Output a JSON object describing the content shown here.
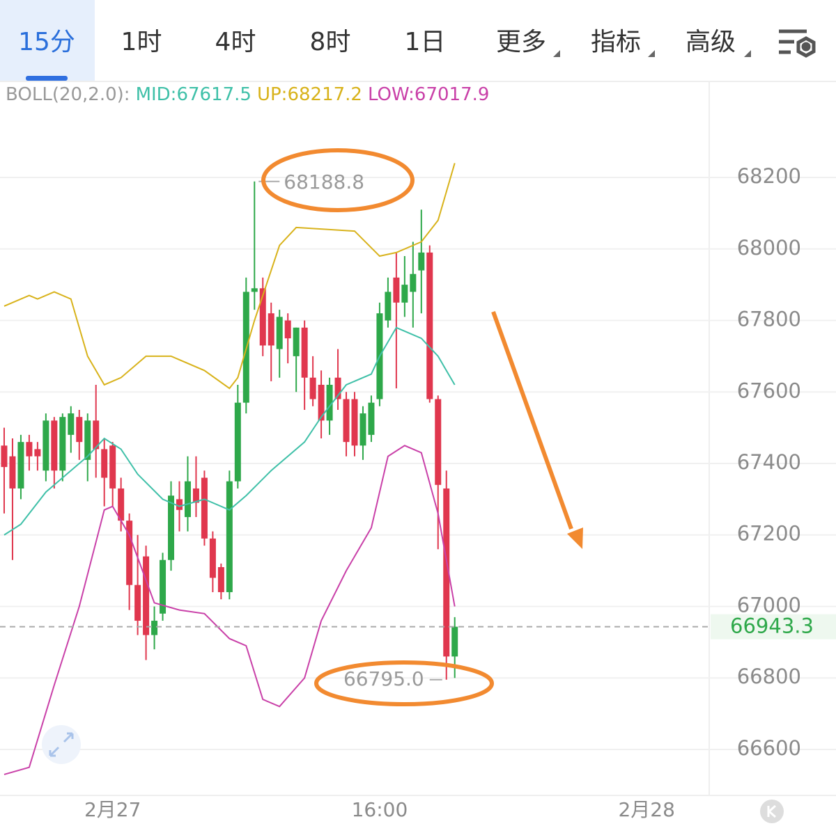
{
  "tabs": [
    "15分",
    "1时",
    "4时",
    "8时",
    "1日",
    "更多",
    "指标",
    "高级"
  ],
  "chart_data": {
    "type": "candlestick",
    "indicator_label": "BOLL(20,2.0):",
    "x": [
      0,
      1,
      2,
      3,
      4,
      5,
      6,
      7,
      8,
      9,
      10,
      11,
      12,
      13,
      14,
      15,
      16,
      17,
      18,
      19,
      20,
      21,
      22,
      23,
      24,
      25,
      26,
      27,
      28,
      29,
      30,
      31,
      32,
      33,
      34,
      35,
      36,
      37,
      38,
      39,
      40,
      41,
      42,
      43,
      44,
      45,
      46,
      47,
      48,
      49,
      50,
      51,
      52,
      53,
      54
    ],
    "open": [
      67450,
      67420,
      67330,
      67460,
      67440,
      67380,
      67520,
      67380,
      67480,
      67530,
      67410,
      67520,
      67440,
      67450,
      67330,
      67240,
      67060,
      67140,
      66920,
      66980,
      67130,
      67300,
      67250,
      67330,
      67360,
      67190,
      67110,
      67040,
      67350,
      67570,
      67880,
      67890,
      67820,
      67720,
      67800,
      67700,
      67780,
      67640,
      67620,
      67520,
      67640,
      67580,
      67580,
      67450,
      67480,
      67580,
      67800,
      67920,
      67850,
      67880,
      67940,
      67990,
      67580,
      67330,
      66860
    ],
    "high": [
      67500,
      67470,
      67480,
      67480,
      67460,
      67540,
      67530,
      67540,
      67560,
      67550,
      67540,
      67620,
      67470,
      67460,
      67360,
      67260,
      67200,
      67170,
      67000,
      67150,
      67350,
      67350,
      67420,
      67420,
      67380,
      67210,
      67120,
      67380,
      67620,
      67920,
      68188.8,
      67920,
      67850,
      67830,
      67820,
      67780,
      67800,
      67700,
      67660,
      67640,
      67720,
      67600,
      67600,
      67560,
      67590,
      67850,
      67920,
      67990,
      67980,
      68020,
      68110,
      68010,
      67590,
      67380,
      66970
    ],
    "low": [
      67260,
      67130,
      67300,
      67380,
      67380,
      67350,
      67330,
      67350,
      67430,
      67410,
      67350,
      67360,
      67280,
      67280,
      67210,
      66990,
      66920,
      66850,
      66880,
      66960,
      67100,
      67210,
      67210,
      67250,
      67170,
      67040,
      67020,
      67020,
      67330,
      67540,
      67830,
      67700,
      67630,
      67640,
      67680,
      67600,
      67550,
      67560,
      67470,
      67480,
      67550,
      67420,
      67420,
      67410,
      67460,
      67560,
      67780,
      67610,
      67810,
      67780,
      67820,
      67570,
      67160,
      66795,
      66800
    ],
    "close": [
      67390,
      67330,
      67460,
      67420,
      67420,
      67520,
      67380,
      67530,
      67540,
      67460,
      67520,
      67440,
      67360,
      67330,
      67240,
      67060,
      66960,
      66920,
      66960,
      67130,
      67310,
      67270,
      67350,
      67290,
      67190,
      67080,
      67040,
      67350,
      67570,
      67880,
      67890,
      67730,
      67730,
      67810,
      67750,
      67780,
      67640,
      67580,
      67520,
      67620,
      67580,
      67460,
      67450,
      67540,
      67570,
      67820,
      67880,
      67850,
      67900,
      67930,
      67990,
      67580,
      67340,
      66860,
      66943.3
    ],
    "up_color": "#2ea84a",
    "down_color": "#e0374e",
    "overlays": [
      {
        "label": "MID:67617.5",
        "color": "#3fc0a8",
        "x": [
          0,
          2,
          5,
          8,
          10,
          12,
          14,
          16,
          19,
          21,
          24,
          27,
          29,
          32,
          36,
          38,
          41,
          44,
          45,
          47,
          50,
          52,
          54
        ],
        "values": [
          67200,
          67230,
          67320,
          67380,
          67420,
          67470,
          67440,
          67370,
          67300,
          67280,
          67300,
          67270,
          67310,
          67380,
          67460,
          67530,
          67620,
          67650,
          67700,
          67780,
          67750,
          67700,
          67620
        ]
      },
      {
        "label": "UP:68217.2",
        "color": "#d8b21a",
        "x": [
          0,
          3,
          4,
          6,
          8,
          10,
          12,
          14,
          17,
          20,
          24,
          27,
          28,
          30,
          33,
          35,
          42,
          45,
          47,
          50,
          52,
          54
        ],
        "values": [
          67840,
          67870,
          67860,
          67880,
          67860,
          67700,
          67620,
          67640,
          67700,
          67700,
          67660,
          67610,
          67640,
          67800,
          68010,
          68060,
          68050,
          67980,
          67990,
          68020,
          68080,
          68240
        ]
      },
      {
        "label": "LOW:67017.9",
        "color": "#c940a8",
        "x": [
          0,
          3,
          6,
          9,
          12,
          13,
          15,
          18,
          21,
          24,
          27,
          29,
          31,
          33,
          36,
          38,
          41,
          44,
          46,
          48,
          50,
          52,
          54
        ],
        "values": [
          66530,
          66550,
          66780,
          67000,
          67270,
          67280,
          67200,
          67010,
          66990,
          66980,
          66910,
          66890,
          66740,
          66720,
          66800,
          66960,
          67100,
          67220,
          67420,
          67450,
          67430,
          67260,
          67000
        ]
      }
    ],
    "max_marker": {
      "x": 30,
      "value": 68188.8
    },
    "min_marker": {
      "x": 53,
      "value": 66795,
      "label": "66795.0"
    },
    "last_price": 66943.3,
    "last_color": "#2ea84a",
    "xlim": [
      -0.5,
      84.5
    ],
    "xticks": [
      {
        "value": 13,
        "label": "2月27"
      },
      {
        "value": 45,
        "label": "16:00"
      },
      {
        "value": 77,
        "label": "2月28"
      }
    ],
    "ylim": [
      66471.5,
      68466.7
    ],
    "yticks": [
      66600,
      66800,
      67000,
      67200,
      67400,
      67600,
      67800,
      68000,
      68200
    ],
    "grid": true
  }
}
